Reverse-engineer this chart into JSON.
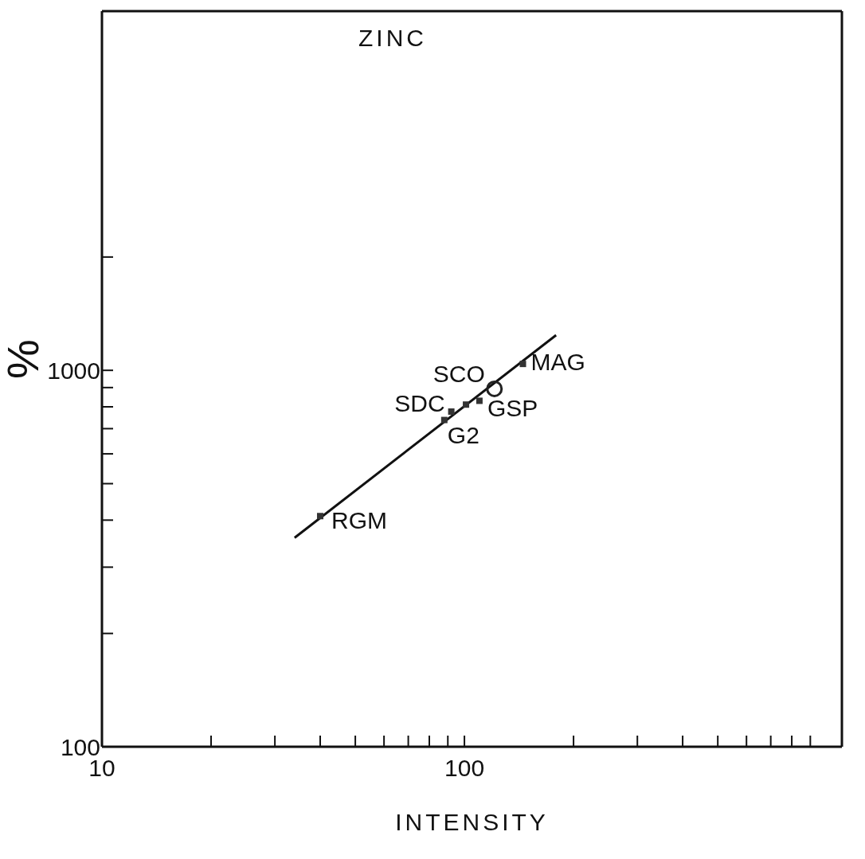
{
  "chart_data": {
    "type": "scatter",
    "title": "ZINC",
    "xlabel": "INTENSITY",
    "ylabel": "%",
    "log": "xy",
    "xlim": [
      10,
      1100
    ],
    "ylim": [
      100,
      9000
    ],
    "xticks": [
      10,
      {
        "value": 20,
        "label": null
      },
      {
        "value": 30,
        "label": null
      },
      {
        "value": 40,
        "label": null
      },
      {
        "value": 50,
        "label": null
      },
      {
        "value": 60,
        "label": null
      },
      {
        "value": 70,
        "label": null
      },
      {
        "value": 80,
        "label": null
      },
      {
        "value": 90,
        "label": null
      },
      100,
      {
        "value": 200,
        "label": null
      },
      {
        "value": 300,
        "label": null
      },
      {
        "value": 400,
        "label": null
      },
      {
        "value": 500,
        "label": null
      },
      {
        "value": 600,
        "label": null
      },
      {
        "value": 700,
        "label": null
      },
      {
        "value": 800,
        "label": null
      },
      {
        "value": 900,
        "label": null
      }
    ],
    "yticks": [
      100,
      {
        "value": 200,
        "label": null
      },
      {
        "value": 300,
        "label": null
      },
      {
        "value": 400,
        "label": null
      },
      {
        "value": 500,
        "label": null
      },
      {
        "value": 600,
        "label": null
      },
      {
        "value": 700,
        "label": null
      },
      {
        "value": 800,
        "label": null
      },
      {
        "value": 900,
        "label": null
      },
      1000,
      {
        "value": 2000,
        "label": null
      }
    ],
    "series": [
      {
        "marker": "square",
        "color": "#333333",
        "x": [
          40,
          88,
          92,
          101,
          110,
          145
        ],
        "values": [
          410,
          738,
          777,
          811,
          830,
          1040
        ]
      },
      {
        "marker": "circle",
        "color": "#222222",
        "x": [
          121
        ],
        "values": [
          893
        ]
      },
      {
        "type": "line",
        "marker": "none",
        "color": "#111111",
        "x": [
          34,
          179
        ],
        "values": [
          359,
          1240
        ]
      }
    ],
    "annotations": [
      {
        "text": "RGM",
        "x": 40,
        "y": 410
      },
      {
        "text": "G2",
        "x": 88,
        "y": 738
      },
      {
        "text": "SDC",
        "x": 92,
        "y": 777
      },
      {
        "text": "SCO",
        "x": 121,
        "y": 893
      },
      {
        "text": "GSP",
        "x": 110,
        "y": 830
      },
      {
        "text": "MAG",
        "x": 145,
        "y": 1040
      }
    ]
  }
}
